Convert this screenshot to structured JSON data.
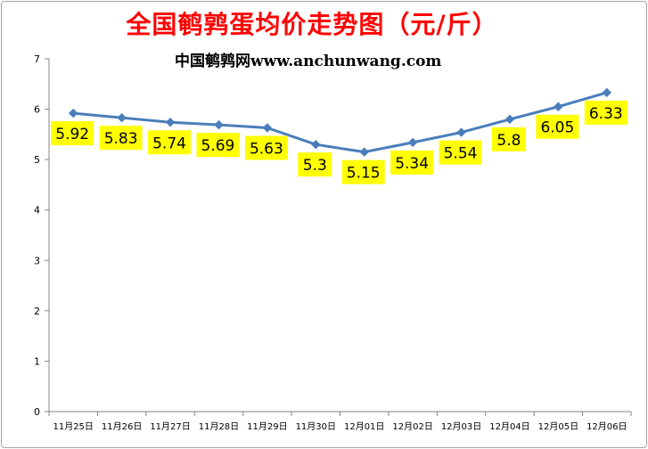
{
  "chart_data": {
    "type": "line",
    "title": "全国鹌鹑蛋均价走势图（元/斤）",
    "subtitle": "中国鹌鹑网www.anchunwang.com",
    "xlabel": "",
    "ylabel": "",
    "categories": [
      "11月25日",
      "11月26日",
      "11月27日",
      "11月28日",
      "11月29日",
      "11月30日",
      "12月01日",
      "12月02日",
      "12月03日",
      "12月04日",
      "12月05日",
      "12月06日"
    ],
    "series": [
      {
        "values": [
          5.92,
          5.83,
          5.74,
          5.69,
          5.63,
          5.3,
          5.15,
          5.34,
          5.54,
          5.8,
          6.05,
          6.33
        ]
      }
    ],
    "data_labels": [
      "5.92",
      "5.83",
      "5.74",
      "5.69",
      "5.63",
      "5.3",
      "5.15",
      "5.34",
      "5.54",
      "5.8",
      "6.05",
      "6.33"
    ],
    "ylim": [
      0,
      7
    ],
    "yticks": [
      0,
      1,
      2,
      3,
      4,
      5,
      6,
      7
    ],
    "grid": false,
    "legend": "none",
    "colors": {
      "title": "#ff0000",
      "line": "#4a7ebb",
      "marker": "#4a7ebb",
      "label_bg": "#ffff00",
      "axis": "#868686"
    }
  }
}
